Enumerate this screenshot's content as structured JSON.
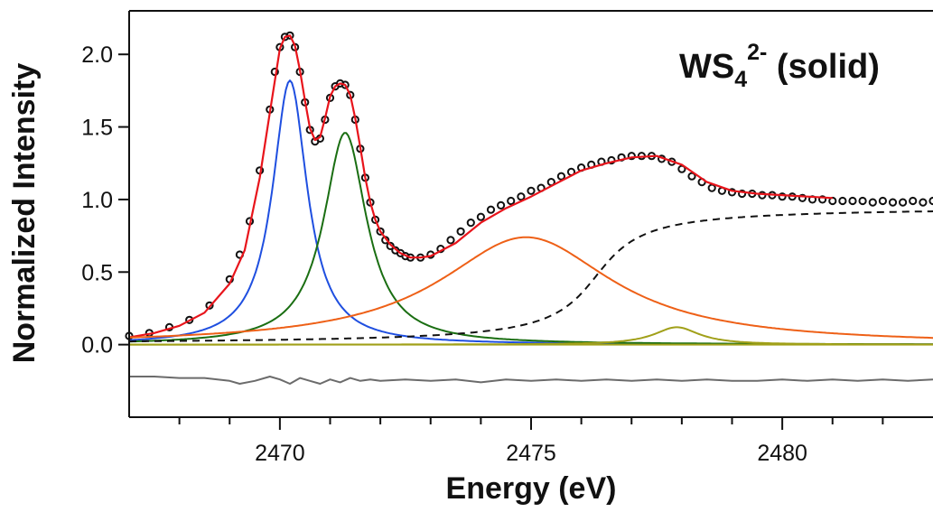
{
  "chart_data": {
    "type": "line",
    "title": "",
    "xlabel": "Energy (eV)",
    "ylabel": "Normalized Intensity",
    "xlim": [
      2467.0,
      2483.0
    ],
    "ylim": [
      -0.5,
      2.3
    ],
    "x_ticks": [
      2470,
      2475,
      2480
    ],
    "x_tick_labels": [
      "2470",
      "2475",
      "2480"
    ],
    "x_minor_ticks": [
      2468,
      2469,
      2471,
      2472,
      2473,
      2474,
      2476,
      2477,
      2478,
      2479,
      2481,
      2482
    ],
    "y_ticks": [
      0,
      0.5,
      1.0,
      1.5,
      2.0
    ],
    "y_tick_labels": [
      "0.0",
      "0.5",
      "1.0",
      "1.5",
      "2.0"
    ],
    "grid": false,
    "annotation": {
      "base": "WS",
      "subscript": "4",
      "superscript": "2-",
      "suffix": " (solid)"
    },
    "series": [
      {
        "kind": "scatter",
        "color": "#111111",
        "x": [
          2467.0,
          2467.4,
          2467.8,
          2468.2,
          2468.6,
          2469.0,
          2469.2,
          2469.4,
          2469.6,
          2469.8,
          2469.9,
          2470.0,
          2470.1,
          2470.2,
          2470.3,
          2470.4,
          2470.5,
          2470.6,
          2470.7,
          2470.8,
          2470.9,
          2471.0,
          2471.1,
          2471.2,
          2471.3,
          2471.4,
          2471.5,
          2471.6,
          2471.7,
          2471.8,
          2471.9,
          2472.0,
          2472.1,
          2472.2,
          2472.3,
          2472.4,
          2472.5,
          2472.6,
          2472.8,
          2473.0,
          2473.2,
          2473.4,
          2473.6,
          2473.8,
          2474.0,
          2474.2,
          2474.4,
          2474.6,
          2474.8,
          2475.0,
          2475.2,
          2475.4,
          2475.6,
          2475.8,
          2476.0,
          2476.2,
          2476.4,
          2476.6,
          2476.8,
          2477.0,
          2477.2,
          2477.4,
          2477.6,
          2477.8,
          2478.0,
          2478.2,
          2478.4,
          2478.6,
          2478.8,
          2479.0,
          2479.2,
          2479.4,
          2479.6,
          2479.8,
          2480.0,
          2480.2,
          2480.4,
          2480.6,
          2480.8,
          2481.0,
          2481.2,
          2481.4,
          2481.6,
          2481.8,
          2482.0,
          2482.2,
          2482.4,
          2482.6,
          2482.8,
          2483.0
        ],
        "y": [
          0.06,
          0.08,
          0.12,
          0.17,
          0.27,
          0.45,
          0.62,
          0.85,
          1.2,
          1.62,
          1.88,
          2.05,
          2.12,
          2.13,
          2.05,
          1.88,
          1.67,
          1.48,
          1.4,
          1.42,
          1.55,
          1.7,
          1.78,
          1.8,
          1.79,
          1.72,
          1.55,
          1.35,
          1.15,
          0.98,
          0.86,
          0.78,
          0.72,
          0.68,
          0.65,
          0.63,
          0.61,
          0.6,
          0.6,
          0.62,
          0.66,
          0.72,
          0.78,
          0.84,
          0.88,
          0.93,
          0.96,
          0.99,
          1.02,
          1.06,
          1.08,
          1.12,
          1.16,
          1.19,
          1.22,
          1.24,
          1.26,
          1.27,
          1.29,
          1.3,
          1.3,
          1.3,
          1.28,
          1.26,
          1.21,
          1.16,
          1.12,
          1.08,
          1.06,
          1.05,
          1.04,
          1.04,
          1.03,
          1.03,
          1.02,
          1.02,
          1.01,
          1.0,
          1.0,
          0.99,
          0.99,
          0.99,
          0.99,
          0.98,
          0.99,
          0.98,
          0.98,
          0.99,
          0.98,
          0.99
        ]
      },
      {
        "kind": "line",
        "color": "#e8141b",
        "width": 2.2,
        "x": [
          2467.0,
          2467.5,
          2468.0,
          2468.5,
          2469.0,
          2469.3,
          2469.6,
          2469.8,
          2470.0,
          2470.1,
          2470.2,
          2470.3,
          2470.4,
          2470.5,
          2470.6,
          2470.7,
          2470.8,
          2470.9,
          2471.0,
          2471.1,
          2471.2,
          2471.3,
          2471.4,
          2471.5,
          2471.6,
          2471.7,
          2471.8,
          2471.9,
          2472.0,
          2472.2,
          2472.4,
          2472.6,
          2472.8,
          2473.0,
          2473.5,
          2474.0,
          2474.5,
          2475.0,
          2475.5,
          2476.0,
          2476.5,
          2477.0,
          2477.5,
          2478.0,
          2478.5,
          2479.0,
          2479.5,
          2480.0,
          2480.5,
          2481.0
        ],
        "y": [
          0.05,
          0.08,
          0.13,
          0.22,
          0.42,
          0.65,
          1.15,
          1.6,
          2.04,
          2.12,
          2.13,
          2.06,
          1.89,
          1.68,
          1.49,
          1.41,
          1.43,
          1.56,
          1.71,
          1.78,
          1.8,
          1.79,
          1.72,
          1.56,
          1.36,
          1.15,
          0.98,
          0.86,
          0.78,
          0.69,
          0.63,
          0.6,
          0.6,
          0.61,
          0.7,
          0.84,
          0.94,
          1.02,
          1.11,
          1.2,
          1.25,
          1.29,
          1.3,
          1.24,
          1.12,
          1.06,
          1.04,
          1.03,
          1.02,
          1.01
        ]
      },
      {
        "kind": "line",
        "color": "#1f4fe0",
        "width": 2,
        "peak": {
          "center": 2470.2,
          "height": 1.82,
          "hwhm": 0.42
        }
      },
      {
        "kind": "line",
        "color": "#1a6e12",
        "width": 2,
        "peak": {
          "center": 2471.3,
          "height": 1.46,
          "hwhm": 0.52
        }
      },
      {
        "kind": "line",
        "color": "#ee6017",
        "width": 2,
        "peak": {
          "center": 2474.9,
          "height": 0.74,
          "hwhm": 2.1
        }
      },
      {
        "kind": "line",
        "color": "#a1a019",
        "width": 2,
        "peak": {
          "center": 2477.9,
          "height": 0.12,
          "hwhm": 0.55
        }
      },
      {
        "kind": "line",
        "color": "#a1a019",
        "width": 2,
        "x": [
          2467.0,
          2483.0
        ],
        "y": [
          0.0,
          0.0
        ]
      },
      {
        "kind": "line",
        "color": "#111111",
        "width": 2,
        "dash": "8,6",
        "step": {
          "center": 2476.3,
          "height": 0.95,
          "width": 0.7
        }
      },
      {
        "kind": "line",
        "color": "#6b6b6b",
        "width": 2,
        "x": [
          2467.0,
          2467.5,
          2468.0,
          2468.5,
          2469.0,
          2469.2,
          2469.5,
          2469.8,
          2470.0,
          2470.2,
          2470.4,
          2470.6,
          2470.8,
          2471.0,
          2471.2,
          2471.4,
          2471.6,
          2471.8,
          2472.0,
          2472.5,
          2473.0,
          2473.5,
          2474.0,
          2474.5,
          2475.0,
          2475.5,
          2476.0,
          2476.5,
          2477.0,
          2477.5,
          2478.0,
          2478.5,
          2479.0,
          2479.5,
          2480.0,
          2480.5,
          2481.0,
          2481.5,
          2482.0,
          2482.5,
          2483.0
        ],
        "y": [
          -0.22,
          -0.22,
          -0.23,
          -0.23,
          -0.25,
          -0.27,
          -0.25,
          -0.22,
          -0.24,
          -0.27,
          -0.23,
          -0.25,
          -0.27,
          -0.24,
          -0.26,
          -0.23,
          -0.25,
          -0.24,
          -0.25,
          -0.24,
          -0.25,
          -0.24,
          -0.26,
          -0.24,
          -0.25,
          -0.24,
          -0.25,
          -0.24,
          -0.25,
          -0.24,
          -0.25,
          -0.24,
          -0.25,
          -0.25,
          -0.24,
          -0.25,
          -0.24,
          -0.25,
          -0.24,
          -0.25,
          -0.24
        ]
      }
    ]
  }
}
